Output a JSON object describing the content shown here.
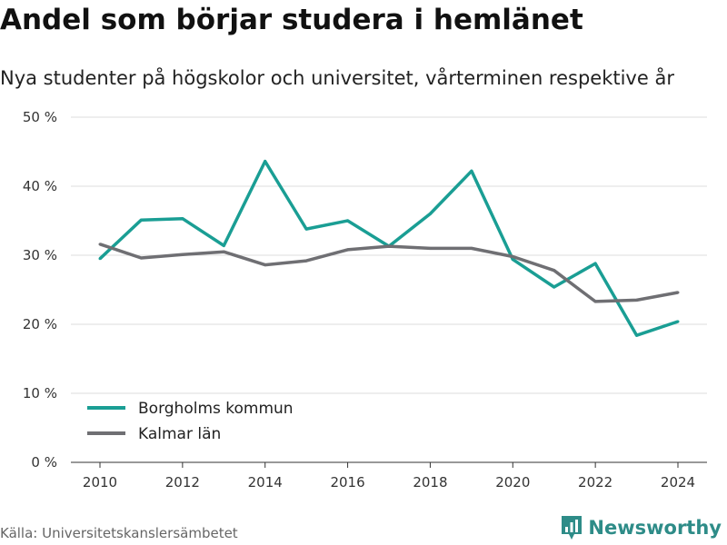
{
  "title": "Andel som börjar studera i hemlänet",
  "subtitle": "Nya studenter på högskolor och universitet, vårterminen respektive år",
  "source": "Källa: Universitetskanslersämbetet",
  "brand": {
    "name": "Newsworthy",
    "icon": "bar-chart-logo-icon",
    "color": "#2e8c88"
  },
  "chart_data": {
    "type": "line",
    "x": [
      2010,
      2011,
      2012,
      2013,
      2014,
      2015,
      2016,
      2017,
      2018,
      2019,
      2020,
      2021,
      2022,
      2023,
      2024
    ],
    "xticks": [
      2010,
      2012,
      2014,
      2016,
      2018,
      2020,
      2022,
      2024
    ],
    "yticks": [
      0,
      10,
      20,
      30,
      40,
      50
    ],
    "ytick_labels": [
      "0 %",
      "10 %",
      "20 %",
      "30 %",
      "40 %",
      "50 %"
    ],
    "xlim": [
      2010,
      2024
    ],
    "ylim": [
      0,
      50
    ],
    "grid": "horizontal",
    "legend_position": "bottom-left",
    "series": [
      {
        "name": "Borgholms kommun",
        "color": "#1a9e94",
        "values": [
          29.5,
          35.1,
          35.3,
          31.4,
          43.6,
          33.8,
          35.0,
          31.3,
          36.0,
          42.2,
          29.4,
          25.4,
          28.8,
          18.4,
          20.4
        ]
      },
      {
        "name": "Kalmar län",
        "color": "#6f6f73",
        "values": [
          31.6,
          29.6,
          30.1,
          30.5,
          28.6,
          29.2,
          30.8,
          31.3,
          31.0,
          31.0,
          29.8,
          27.8,
          23.3,
          23.5,
          24.6
        ]
      }
    ]
  }
}
